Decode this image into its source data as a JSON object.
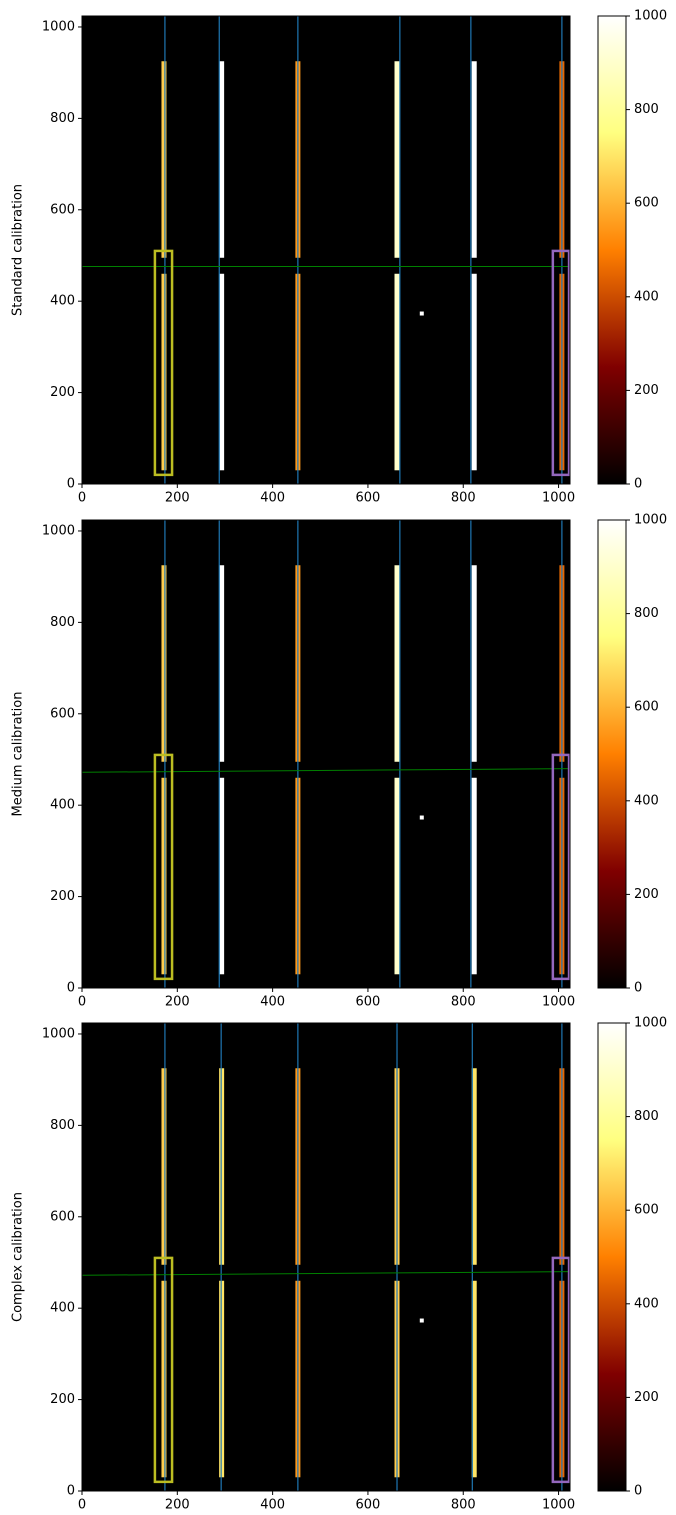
{
  "chart_data": [
    {
      "type": "image",
      "ylabel": "Standard calibration",
      "colormap": "afmhot",
      "xlim": [
        0,
        1024
      ],
      "ylim": [
        0,
        1024
      ],
      "xticks": [
        0,
        200,
        400,
        600,
        800,
        1000
      ],
      "yticks": [
        0,
        200,
        400,
        600,
        800,
        1000
      ],
      "clim": [
        0,
        1000
      ],
      "cticks": [
        0,
        200,
        400,
        600,
        800,
        1000
      ],
      "slits": {
        "x": [
          172,
          293,
          453,
          661,
          823,
          1007
        ],
        "values": [
          650,
          1000,
          550,
          900,
          1000,
          450
        ]
      },
      "segments": [
        [
          30,
          460
        ],
        [
          495,
          925
        ]
      ],
      "traces": {
        "color": "#1f77b4",
        "x": [
          174,
          288,
          453,
          667,
          816,
          1007
        ]
      },
      "cut": {
        "color": "#008000",
        "x": [
          0,
          1024
        ],
        "y": [
          476,
          476
        ]
      },
      "boxes": [
        {
          "color": "#bcbd22",
          "x": [
            153,
            189
          ],
          "y": [
            20,
            510
          ]
        },
        {
          "color": "#9467bd",
          "x": [
            988,
            1022
          ],
          "y": [
            20,
            510
          ]
        }
      ],
      "spot": {
        "x": 713,
        "y": 373,
        "value": 1000
      }
    },
    {
      "type": "image",
      "ylabel": "Medium calibration",
      "colormap": "afmhot",
      "xlim": [
        0,
        1024
      ],
      "ylim": [
        0,
        1024
      ],
      "xticks": [
        0,
        200,
        400,
        600,
        800,
        1000
      ],
      "yticks": [
        0,
        200,
        400,
        600,
        800,
        1000
      ],
      "clim": [
        0,
        1000
      ],
      "cticks": [
        0,
        200,
        400,
        600,
        800,
        1000
      ],
      "slits": {
        "x": [
          172,
          293,
          453,
          661,
          823,
          1007
        ],
        "values": [
          650,
          1000,
          550,
          900,
          1000,
          450
        ]
      },
      "segments": [
        [
          30,
          460
        ],
        [
          495,
          925
        ]
      ],
      "traces": {
        "color": "#1f77b4",
        "x": [
          174,
          288,
          453,
          667,
          816,
          1007
        ]
      },
      "cut": {
        "color": "#008000",
        "x": [
          0,
          1024
        ],
        "y": [
          472,
          480
        ]
      },
      "boxes": [
        {
          "color": "#bcbd22",
          "x": [
            153,
            189
          ],
          "y": [
            20,
            510
          ]
        },
        {
          "color": "#9467bd",
          "x": [
            988,
            1022
          ],
          "y": [
            20,
            510
          ]
        }
      ],
      "spot": {
        "x": 713,
        "y": 373,
        "value": 1000
      }
    },
    {
      "type": "image",
      "ylabel": "Complex calibration",
      "colormap": "afmhot",
      "xlim": [
        0,
        1024
      ],
      "ylim": [
        0,
        1024
      ],
      "xticks": [
        0,
        200,
        400,
        600,
        800,
        1000
      ],
      "yticks": [
        0,
        200,
        400,
        600,
        800,
        1000
      ],
      "clim": [
        0,
        1000
      ],
      "cticks": [
        0,
        200,
        400,
        600,
        800,
        1000
      ],
      "slits": {
        "x": [
          172,
          293,
          453,
          661,
          823,
          1007
        ],
        "values": [
          650,
          700,
          550,
          650,
          700,
          450
        ]
      },
      "segments": [
        [
          30,
          460
        ],
        [
          495,
          925
        ]
      ],
      "traces": {
        "color": "#1f77b4",
        "x": [
          174,
          292,
          453,
          661,
          819,
          1007
        ]
      },
      "cut": {
        "color": "#008000",
        "x": [
          0,
          1024
        ],
        "y": [
          472,
          480
        ]
      },
      "boxes": [
        {
          "color": "#bcbd22",
          "x": [
            153,
            189
          ],
          "y": [
            20,
            510
          ]
        },
        {
          "color": "#9467bd",
          "x": [
            988,
            1022
          ],
          "y": [
            20,
            510
          ]
        }
      ],
      "spot": {
        "x": 713,
        "y": 373,
        "value": 1000
      }
    }
  ]
}
